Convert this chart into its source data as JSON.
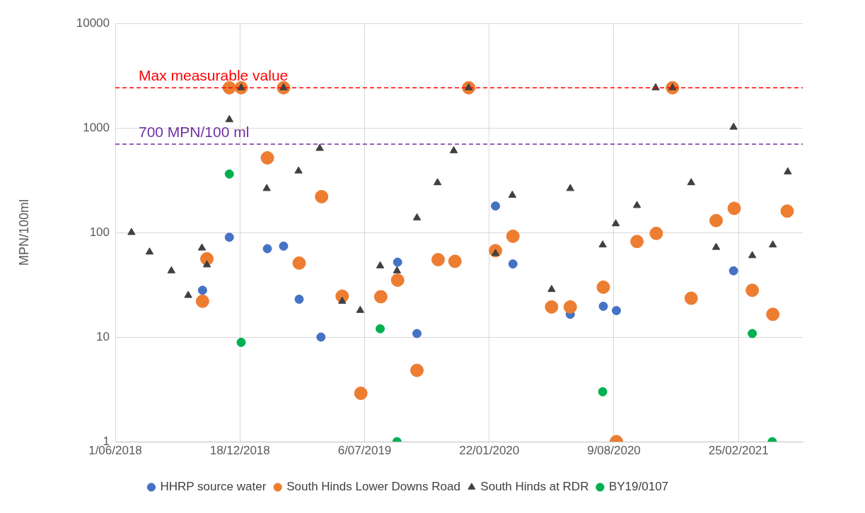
{
  "chart_data": {
    "type": "scatter",
    "ylabel": "MPN/100ml",
    "log": "y",
    "grid": true,
    "legend": "bottom",
    "xlim": [
      "2018-06-01",
      "2021-06-08"
    ],
    "xticks": [
      {
        "value": "2018-06-01",
        "label": "1/06/2018"
      },
      {
        "value": "2018-12-18",
        "label": "18/12/2018"
      },
      {
        "value": "2019-07-06",
        "label": "6/07/2019"
      },
      {
        "value": "2020-01-22",
        "label": "22/01/2020"
      },
      {
        "value": "2020-08-09",
        "label": "9/08/2020"
      },
      {
        "value": "2021-02-25",
        "label": "25/02/2021"
      }
    ],
    "ylim": [
      1,
      10000
    ],
    "yticks": [
      1,
      10,
      100,
      1000,
      10000
    ],
    "ref_lines": [
      {
        "axis": "y",
        "value": 2420,
        "label": "Max measurable value",
        "color": "#ff0000",
        "line_style": "dashed"
      },
      {
        "axis": "y",
        "value": 700,
        "label": "700 MPN/100 ml",
        "color": "#7030a0",
        "line_style": "dashed"
      }
    ],
    "series": [
      {
        "name": "HHRP source water",
        "color": "#4472c4",
        "marker": "circle",
        "x": [
          "2018-10-19",
          "2018-12-01",
          "2019-01-31",
          "2019-02-26",
          "2019-03-23",
          "2019-04-27",
          "2019-08-28",
          "2019-09-28",
          "2020-02-01",
          "2020-02-29",
          "2020-05-31",
          "2020-07-23",
          "2020-08-13",
          "2020-12-11",
          "2021-01-20",
          "2021-02-17"
        ],
        "values": [
          28,
          90,
          70,
          74,
          23,
          10,
          52,
          10.8,
          179,
          50,
          16.5,
          19.7,
          17.9,
          null,
          null,
          43
        ]
      },
      {
        "name": "South Hinds Lower Downs Road",
        "color": "#ed7d31",
        "marker": "circle",
        "x": [
          "2018-10-19",
          "2018-10-26",
          "2018-12-01",
          "2018-12-20",
          "2019-01-31",
          "2019-02-26",
          "2019-03-23",
          "2019-04-28",
          "2019-05-31",
          "2019-06-30",
          "2019-08-01",
          "2019-08-28",
          "2019-09-28",
          "2019-11-01",
          "2019-11-28",
          "2019-12-20",
          "2020-02-01",
          "2020-02-29",
          "2020-05-01",
          "2020-05-31",
          "2020-07-23",
          "2020-08-13",
          "2020-09-15",
          "2020-10-16",
          "2020-11-11",
          "2020-12-11",
          "2021-01-20",
          "2021-02-18",
          "2021-03-19",
          "2021-04-21",
          "2021-05-14"
        ],
        "values": [
          22,
          56,
          2420,
          2420,
          517,
          2420,
          51,
          220,
          24.6,
          2.9,
          24.3,
          35,
          4.8,
          55,
          53,
          2420,
          67,
          92,
          19.4,
          19.4,
          30,
          1,
          82,
          98,
          2420,
          23.5,
          130,
          170,
          28,
          16.5,
          160
        ]
      },
      {
        "name": "South Hinds at RDR",
        "color": "#404040",
        "marker": "triangle",
        "x": [
          "2018-06-27",
          "2018-07-26",
          "2018-08-30",
          "2018-09-26",
          "2018-10-18",
          "2018-10-26",
          "2018-12-01",
          "2018-12-20",
          "2019-01-30",
          "2019-02-26",
          "2019-03-22",
          "2019-04-25",
          "2019-05-31",
          "2019-06-29",
          "2019-07-31",
          "2019-08-27",
          "2019-09-28",
          "2019-10-31",
          "2019-11-26",
          "2019-12-20",
          "2020-02-01",
          "2020-02-28",
          "2020-05-01",
          "2020-05-31",
          "2020-07-22",
          "2020-08-12",
          "2020-09-15",
          "2020-10-15",
          "2020-11-11",
          "2020-12-11",
          "2021-01-20",
          "2021-02-17",
          "2021-03-19",
          "2021-04-21",
          "2021-05-15"
        ],
        "values": [
          100,
          65,
          43,
          25,
          71,
          49,
          1200,
          2420,
          263,
          2420,
          387,
          637,
          22,
          18,
          48,
          43,
          138,
          299,
          605,
          2420,
          63,
          227,
          28.5,
          263,
          76,
          121,
          181,
          2420,
          2420,
          299,
          72,
          1015,
          60,
          76,
          380
        ]
      },
      {
        "name": "BY19/0107",
        "color": "#00b050",
        "marker": "circle",
        "x": [
          "2018-12-01",
          "2018-12-20",
          "2019-07-31",
          "2019-08-27",
          "2020-07-22",
          "2021-03-19",
          "2021-04-20"
        ],
        "values": [
          362,
          8.9,
          12,
          1,
          3,
          10.8,
          1
        ]
      }
    ]
  }
}
